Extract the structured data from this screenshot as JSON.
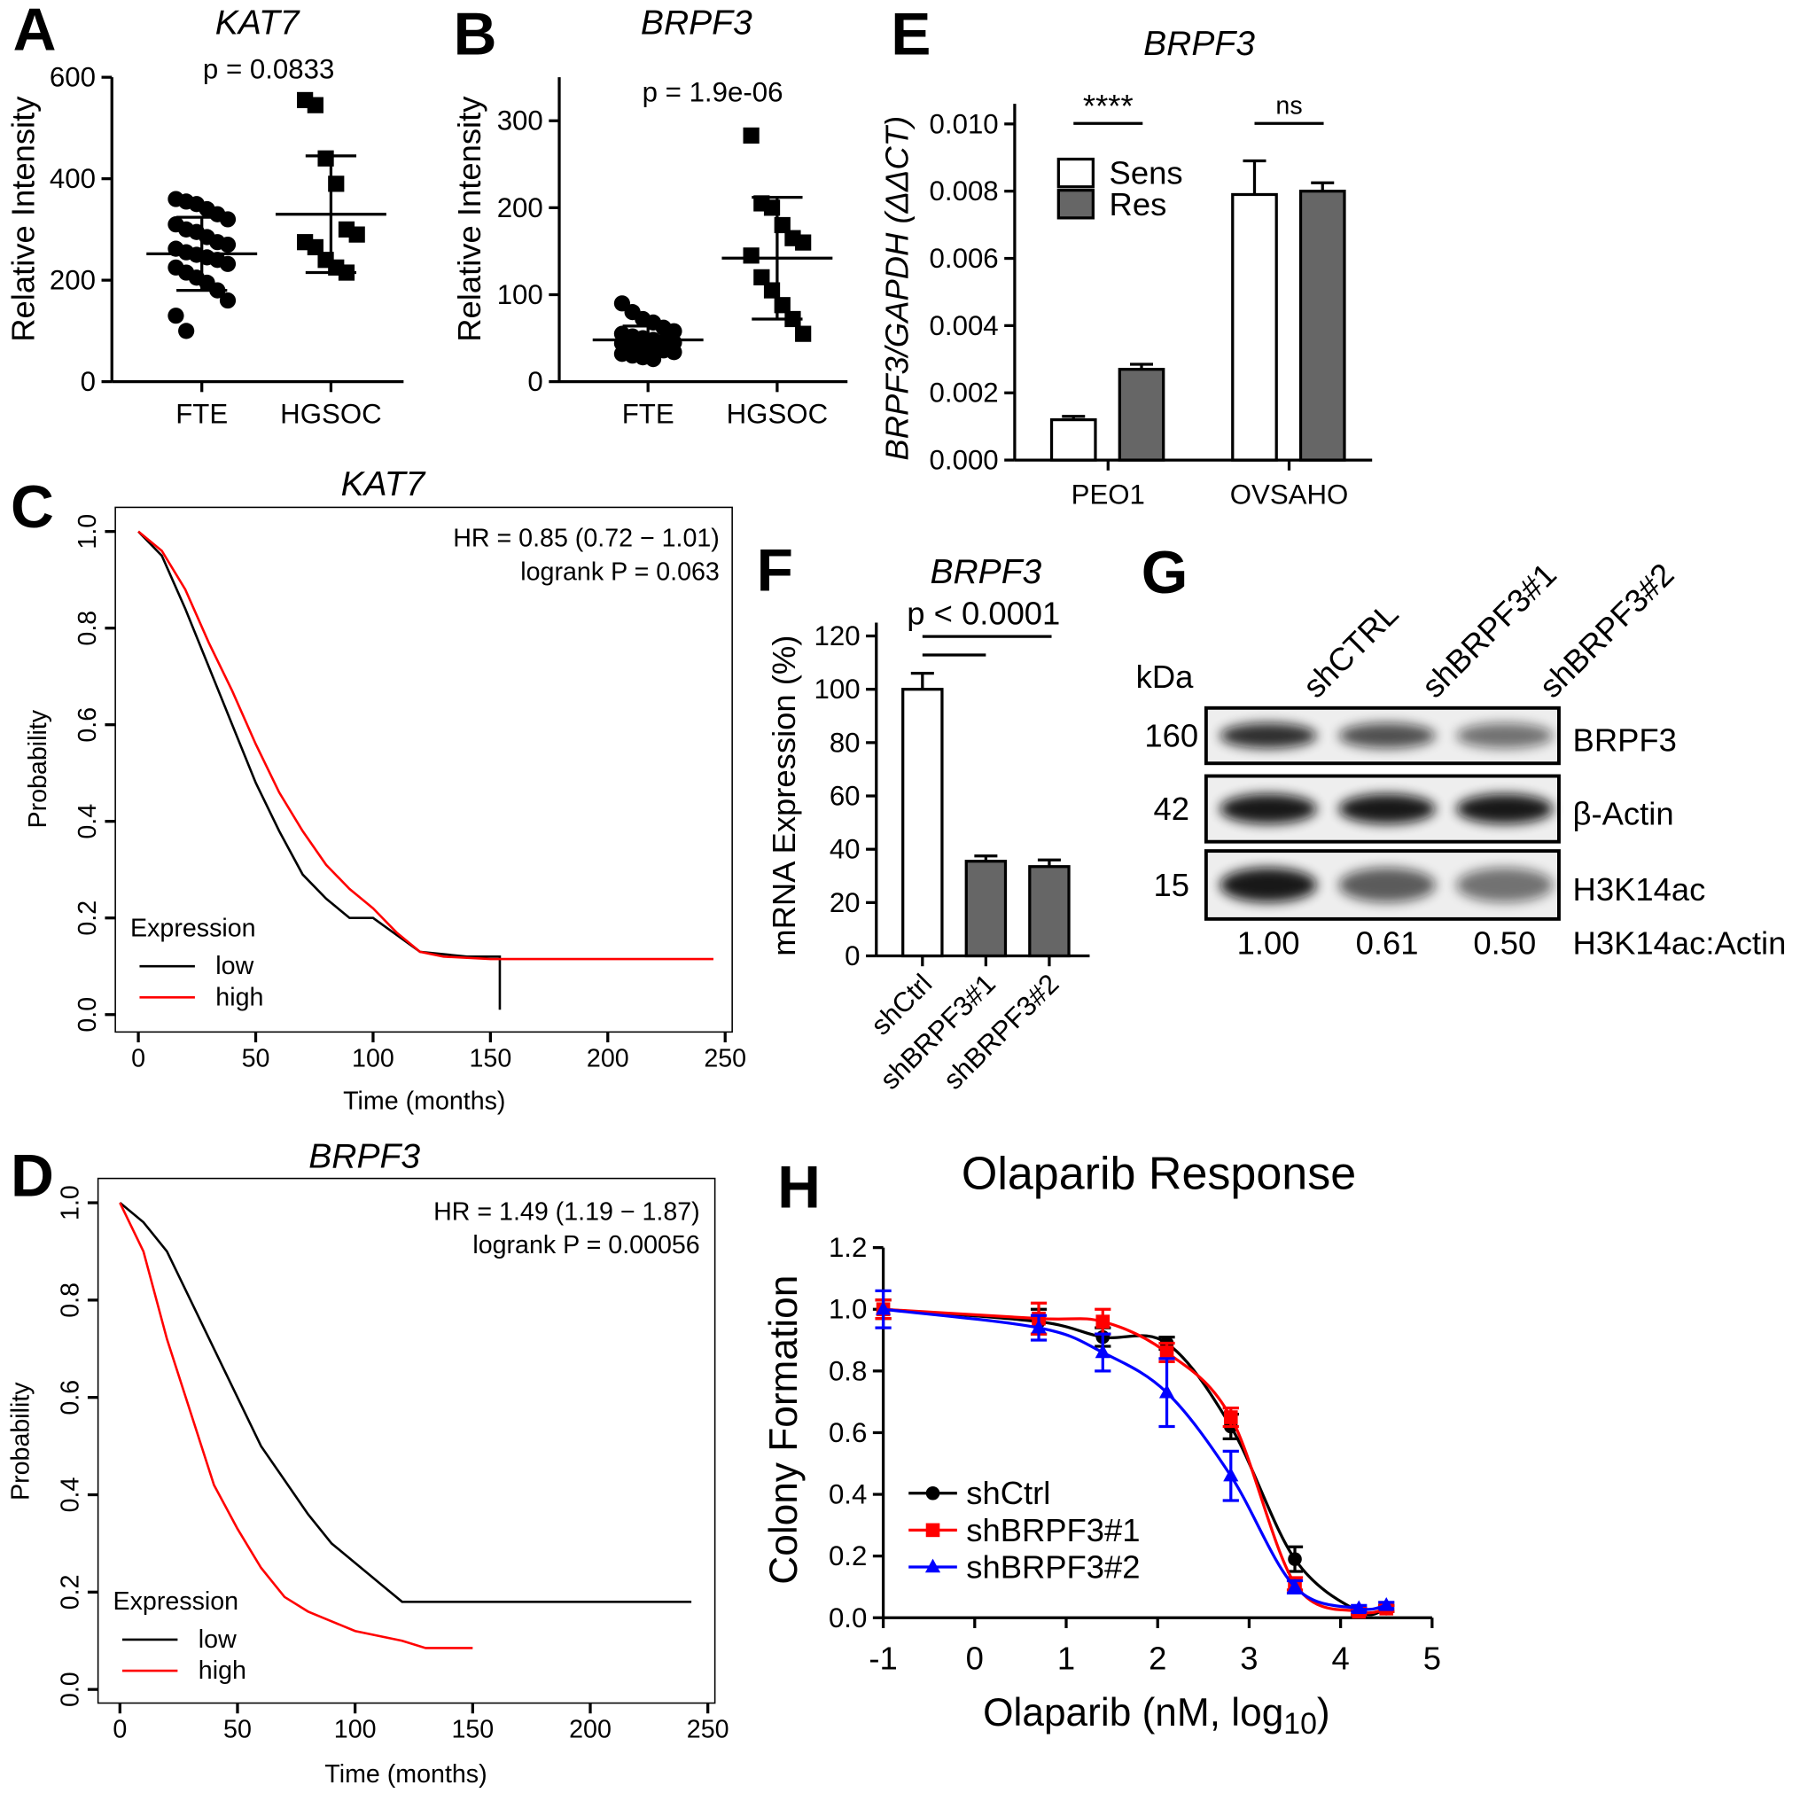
{
  "chart_data": [
    {
      "type": "dot",
      "panel": "A",
      "title": "KAT7",
      "annotation": "p = 0.0833",
      "ylabel": "Relative Intensity",
      "categories": [
        "FTE",
        "HGSOC"
      ],
      "points": [
        [
          360,
          355,
          350,
          340,
          330,
          320,
          310,
          300,
          295,
          285,
          275,
          270,
          262,
          255,
          250,
          245,
          240,
          232,
          225,
          215,
          205,
          195,
          180,
          160,
          130,
          100
        ],
        [
          555,
          545,
          440,
          390,
          300,
          290,
          275,
          265,
          240,
          225,
          215
        ]
      ],
      "mean": [
        252,
        330
      ],
      "sd": [
        72,
        115
      ],
      "color": "#000000",
      "ylim": [
        0,
        600
      ],
      "yticks": [
        0,
        200,
        400,
        600
      ]
    },
    {
      "type": "dot",
      "panel": "B",
      "title": "BRPF3",
      "annotation": "p = 1.9e-06",
      "ylabel": "Relative Intensity",
      "categories": [
        "FTE",
        "HGSOC"
      ],
      "points": [
        [
          90,
          80,
          72,
          68,
          62,
          58,
          55,
          52,
          50,
          48,
          46,
          45,
          44,
          42,
          40,
          38,
          36,
          34,
          32,
          30,
          28,
          26
        ],
        [
          283,
          205,
          200,
          180,
          165,
          160,
          145,
          120,
          105,
          88,
          72,
          55
        ]
      ],
      "mean": [
        48,
        142
      ],
      "sd": [
        16,
        70
      ],
      "color": "#000000",
      "ylim": [
        0,
        350
      ],
      "yticks": [
        0,
        100,
        200,
        300
      ]
    },
    {
      "type": "km",
      "panel": "C",
      "title": "KAT7",
      "annotations": [
        "HR = 0.85 (0.72 − 1.01)",
        "logrank P = 0.063"
      ],
      "xlabel": "Time (months)",
      "ylabel": "Probability",
      "legend_title": "Expression",
      "series": [
        {
          "name": "low",
          "color": "#000000",
          "x": [
            0,
            10,
            20,
            30,
            40,
            50,
            60,
            70,
            80,
            90,
            100,
            120,
            140,
            154,
            154
          ],
          "y": [
            1,
            0.95,
            0.84,
            0.72,
            0.6,
            0.48,
            0.38,
            0.29,
            0.24,
            0.2,
            0.2,
            0.13,
            0.12,
            0.12,
            0.01
          ]
        },
        {
          "name": "high",
          "color": "#ff0000",
          "x": [
            0,
            10,
            20,
            30,
            40,
            50,
            60,
            70,
            80,
            90,
            100,
            110,
            120,
            130,
            150,
            245
          ],
          "y": [
            1,
            0.96,
            0.88,
            0.77,
            0.67,
            0.56,
            0.46,
            0.38,
            0.31,
            0.26,
            0.22,
            0.17,
            0.13,
            0.12,
            0.115,
            0.115
          ]
        }
      ],
      "xlim": [
        -9.8,
        253
      ],
      "ylim": [
        -0.036,
        1.05
      ],
      "xticks": [
        0,
        50,
        100,
        150,
        200,
        250
      ],
      "yticks": [
        {
          "value": 0,
          "label": "0.0"
        },
        0.2,
        0.4,
        0.6,
        0.8,
        {
          "value": 1,
          "label": "1.0"
        }
      ]
    },
    {
      "type": "km",
      "panel": "D",
      "title": "BRPF3",
      "annotations": [
        "HR = 1.49 (1.19 − 1.87)",
        "logrank P = 0.00056"
      ],
      "xlabel": "Time (months)",
      "ylabel": "Probability",
      "legend_title": "Expression",
      "series": [
        {
          "name": "low",
          "color": "#000000",
          "x": [
            0,
            10,
            20,
            30,
            40,
            50,
            60,
            70,
            80,
            90,
            100,
            110,
            120,
            130,
            243
          ],
          "y": [
            1,
            0.96,
            0.9,
            0.8,
            0.7,
            0.6,
            0.5,
            0.43,
            0.36,
            0.3,
            0.26,
            0.22,
            0.18,
            0.18,
            0.18
          ]
        },
        {
          "name": "high",
          "color": "#ff0000",
          "x": [
            0,
            10,
            20,
            30,
            40,
            50,
            60,
            70,
            80,
            90,
            100,
            110,
            120,
            130,
            150
          ],
          "y": [
            1,
            0.9,
            0.72,
            0.57,
            0.42,
            0.33,
            0.25,
            0.19,
            0.16,
            0.14,
            0.12,
            0.11,
            0.1,
            0.085,
            0.085
          ]
        }
      ],
      "xlim": [
        -9.3,
        253
      ],
      "ylim": [
        -0.028,
        1.05
      ],
      "xticks": [
        0,
        50,
        100,
        150,
        200,
        250
      ],
      "yticks": [
        {
          "value": 0,
          "label": "0.0"
        },
        0.2,
        0.4,
        0.6,
        0.8,
        {
          "value": 1,
          "label": "1.0"
        }
      ]
    },
    {
      "type": "bar",
      "panel": "E",
      "title": "BRPF3",
      "ylabel": "BRPF3/GAPDH (ΔΔCT)",
      "annotations": [
        "****",
        "ns"
      ],
      "categories": [
        "PEO1",
        "OVSAHO"
      ],
      "series": [
        {
          "name": "Sens",
          "color": "#ffffff",
          "values": [
            0.0012,
            0.0079
          ],
          "errors": [
            0.0001,
            0.001
          ]
        },
        {
          "name": "Res",
          "color": "#666666",
          "values": [
            0.0027,
            0.008
          ],
          "errors": [
            0.00015,
            0.00025
          ]
        }
      ],
      "ylim": [
        0,
        0.0106
      ],
      "yticks": [
        {
          "value": 0,
          "label": "0.000"
        },
        {
          "value": 0.002,
          "label": "0.002"
        },
        {
          "value": 0.004,
          "label": "0.004"
        },
        {
          "value": 0.006,
          "label": "0.006"
        },
        {
          "value": 0.008,
          "label": "0.008"
        },
        {
          "value": 0.01,
          "label": "0.010"
        }
      ]
    },
    {
      "type": "bar",
      "panel": "F",
      "title": "BRPF3",
      "ylabel": "mRNA Expression (%)",
      "annotations": [
        "p < 0.0001"
      ],
      "categories": [
        "shCtrl",
        "shBRPF3#1",
        "shBRPF3#2"
      ],
      "series": [
        {
          "colors": [
            "#ffffff",
            "#666666",
            "#666666"
          ],
          "values": [
            100,
            35.5,
            33.5
          ],
          "errors": [
            6,
            2,
            2.5
          ]
        }
      ],
      "ylim": [
        0,
        125
      ],
      "yticks": [
        0,
        20,
        40,
        60,
        80,
        100,
        120
      ]
    },
    {
      "type": "dose",
      "panel": "H",
      "title": "Olaparib Response",
      "xlabel": [
        "Olaparib (nM, log",
        "10",
        ")"
      ],
      "ylabel": "Colony Formation",
      "x": [
        -1,
        0.7,
        1.4,
        2.1,
        2.8,
        3.5,
        4.2,
        4.5
      ],
      "series": [
        {
          "name": "shCtrl",
          "color": "#000000",
          "marker": "circle",
          "values": [
            1.0,
            0.96,
            0.91,
            0.89,
            0.62,
            0.19,
            0.02,
            0.03
          ],
          "errors": [
            0.03,
            0.04,
            0.03,
            0.02,
            0.04,
            0.04,
            0.01,
            0.01
          ]
        },
        {
          "name": "shBRPF3#1",
          "color": "#ff0000",
          "marker": "square",
          "values": [
            1.0,
            0.97,
            0.96,
            0.86,
            0.65,
            0.11,
            0.02,
            0.03
          ],
          "errors": [
            0.03,
            0.05,
            0.04,
            0.03,
            0.03,
            0.02,
            0.01,
            0.01
          ]
        },
        {
          "name": "shBRPF3#2",
          "color": "#0000ff",
          "marker": "triangle",
          "values": [
            1.0,
            0.94,
            0.86,
            0.73,
            0.46,
            0.1,
            0.03,
            0.04
          ],
          "errors": [
            0.06,
            0.04,
            0.06,
            0.11,
            0.08,
            0.02,
            0.01,
            0.01
          ]
        }
      ],
      "xlim": [
        -1,
        5
      ],
      "ylim": [
        0,
        1.2
      ],
      "xticks": [
        -1,
        0,
        1,
        2,
        3,
        4,
        5
      ],
      "yticks": [
        {
          "value": 0,
          "label": "0.0"
        },
        0.2,
        0.4,
        0.6,
        0.8,
        {
          "value": 1,
          "label": "1.0"
        },
        1.2
      ]
    }
  ],
  "blot": {
    "panel": "G",
    "kda_label": "kDa",
    "lanes": [
      "shCTRL",
      "shBRPF3#1",
      "shBRPF3#2"
    ],
    "rows": [
      {
        "mw": "160",
        "protein": "BRPF3"
      },
      {
        "mw": "42",
        "protein": "β-Actin"
      },
      {
        "mw": "15",
        "protein": "H3K14ac"
      }
    ],
    "ratio_label": "H3K14ac:Actin",
    "ratios": [
      "1.00",
      "0.61",
      "0.50"
    ]
  }
}
